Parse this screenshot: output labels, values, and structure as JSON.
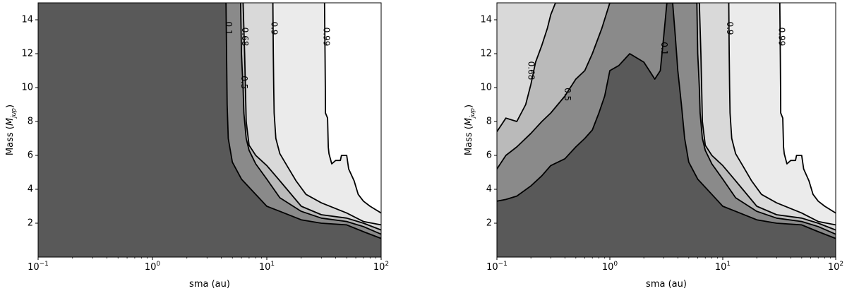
{
  "chart_data": [
    {
      "type": "contour",
      "xlabel": "sma (au)",
      "ylabel": "Mass (M_Jup)",
      "xscale": "log",
      "xlim": [
        0.1,
        100
      ],
      "ylim": [
        0,
        15
      ],
      "x_ticks": [
        {
          "value": 0.1,
          "base": "10",
          "exp": "−1"
        },
        {
          "value": 1,
          "base": "10",
          "exp": "0"
        },
        {
          "value": 10,
          "base": "10",
          "exp": "1"
        },
        {
          "value": 100,
          "base": "10",
          "exp": "2"
        }
      ],
      "y_ticks": [
        2,
        4,
        6,
        8,
        10,
        12,
        14
      ],
      "fill_colors": [
        "#595959",
        "#8a8a8a",
        "#bababa",
        "#d9d9d9",
        "#ebebeb",
        "#ffffff"
      ],
      "contours": [
        {
          "level": "0.1",
          "label_at": [
            4.6,
            13.5
          ],
          "points": [
            [
              4.4,
              15
            ],
            [
              4.45,
              12
            ],
            [
              4.5,
              9
            ],
            [
              4.6,
              7
            ],
            [
              5,
              5.6
            ],
            [
              6,
              4.6
            ],
            [
              8,
              3.7
            ],
            [
              10,
              3
            ],
            [
              13,
              2.7
            ],
            [
              20,
              2.2
            ],
            [
              30,
              2.0
            ],
            [
              50,
              1.9
            ],
            [
              70,
              1.5
            ],
            [
              100,
              1.1
            ]
          ]
        },
        {
          "level": "0.5",
          "label_at": [
            6.3,
            10.3
          ],
          "points": [
            [
              5.9,
              15
            ],
            [
              6.0,
              12
            ],
            [
              6.1,
              11
            ],
            [
              6.2,
              10
            ],
            [
              6.3,
              8.5
            ],
            [
              6.6,
              7
            ],
            [
              7,
              6.3
            ],
            [
              8,
              5.5
            ],
            [
              10,
              4.6
            ],
            [
              13,
              3.5
            ],
            [
              20,
              2.7
            ],
            [
              30,
              2.3
            ],
            [
              50,
              2.1
            ],
            [
              70,
              1.8
            ],
            [
              100,
              1.35
            ]
          ]
        },
        {
          "level": "0.68",
          "label_at": [
            6.4,
            13.0
          ],
          "points": [
            [
              6.2,
              15
            ],
            [
              6.3,
              13.5
            ],
            [
              6.4,
              12
            ],
            [
              6.5,
              10
            ],
            [
              6.6,
              8
            ],
            [
              7,
              6.6
            ],
            [
              8,
              6
            ],
            [
              10,
              5.4
            ],
            [
              13,
              4.5
            ],
            [
              20,
              3
            ],
            [
              30,
              2.5
            ],
            [
              50,
              2.3
            ],
            [
              70,
              2.0
            ],
            [
              100,
              1.6
            ]
          ]
        },
        {
          "level": "0.9",
          "label_at": [
            11.5,
            13.5
          ],
          "points": [
            [
              11.3,
              15
            ],
            [
              11.4,
              12
            ],
            [
              11.5,
              10
            ],
            [
              11.6,
              8.5
            ],
            [
              12,
              7
            ],
            [
              13,
              6.1
            ],
            [
              15,
              5.4
            ],
            [
              18,
              4.5
            ],
            [
              22,
              3.7
            ],
            [
              30,
              3.2
            ],
            [
              50,
              2.6
            ],
            [
              70,
              2.1
            ],
            [
              100,
              1.9
            ]
          ]
        },
        {
          "level": "0.99",
          "label_at": [
            33,
            13.0
          ],
          "points": [
            [
              32,
              15
            ],
            [
              32.3,
              12
            ],
            [
              32.5,
              10
            ],
            [
              32.6,
              8.5
            ],
            [
              34,
              8.2
            ],
            [
              34.5,
              6.5
            ],
            [
              35,
              6.1
            ],
            [
              37,
              5.5
            ],
            [
              40,
              5.7
            ],
            [
              44,
              5.7
            ],
            [
              45,
              6.0
            ],
            [
              50,
              6.0
            ],
            [
              52,
              5.2
            ],
            [
              58,
              4.5
            ],
            [
              63,
              3.7
            ],
            [
              70,
              3.3
            ],
            [
              80,
              3.0
            ],
            [
              100,
              2.6
            ]
          ]
        }
      ]
    },
    {
      "type": "contour",
      "xlabel": "sma (au)",
      "ylabel": "Mass (M_Jup)",
      "xscale": "log",
      "xlim": [
        0.1,
        100
      ],
      "ylim": [
        0,
        15
      ],
      "x_ticks": [
        {
          "value": 0.1,
          "base": "10",
          "exp": "−1"
        },
        {
          "value": 1,
          "base": "10",
          "exp": "0"
        },
        {
          "value": 10,
          "base": "10",
          "exp": "1"
        },
        {
          "value": 100,
          "base": "10",
          "exp": "2"
        }
      ],
      "y_ticks": [
        2,
        4,
        6,
        8,
        10,
        12,
        14
      ],
      "fill_colors": [
        "#595959",
        "#8a8a8a",
        "#bababa",
        "#d9d9d9",
        "#ebebeb",
        "#ffffff"
      ],
      "contours": [
        {
          "level": "0.1",
          "label_at": [
            3.0,
            12.3
          ],
          "points": [
            [
              0.1,
              3.3
            ],
            [
              0.12,
              3.4
            ],
            [
              0.15,
              3.6
            ],
            [
              0.2,
              4.2
            ],
            [
              0.25,
              4.8
            ],
            [
              0.3,
              5.4
            ],
            [
              0.4,
              5.8
            ],
            [
              0.5,
              6.5
            ],
            [
              0.6,
              7.0
            ],
            [
              0.7,
              7.5
            ],
            [
              0.8,
              8.5
            ],
            [
              0.9,
              9.5
            ],
            [
              1.0,
              11.0
            ],
            [
              1.2,
              11.3
            ],
            [
              1.5,
              12.0
            ],
            [
              2.0,
              11.5
            ],
            [
              2.5,
              10.5
            ],
            [
              2.8,
              11.0
            ],
            [
              3.0,
              13.0
            ],
            [
              3.2,
              15
            ],
            [
              3.6,
              15
            ],
            [
              3.8,
              13.0
            ],
            [
              4.0,
              11.0
            ],
            [
              4.3,
              9.0
            ],
            [
              4.6,
              7.0
            ],
            [
              5,
              5.6
            ],
            [
              6,
              4.6
            ],
            [
              8,
              3.7
            ],
            [
              10,
              3
            ],
            [
              13,
              2.7
            ],
            [
              20,
              2.2
            ],
            [
              30,
              2.0
            ],
            [
              50,
              1.9
            ],
            [
              70,
              1.5
            ],
            [
              100,
              1.1
            ]
          ]
        },
        {
          "level": "0.5",
          "label_at": [
            0.42,
            9.6
          ],
          "points": [
            [
              0.1,
              5.2
            ],
            [
              0.12,
              6.0
            ],
            [
              0.15,
              6.5
            ],
            [
              0.2,
              7.3
            ],
            [
              0.25,
              8.0
            ],
            [
              0.3,
              8.5
            ],
            [
              0.4,
              9.5
            ],
            [
              0.5,
              10.5
            ],
            [
              0.6,
              11.0
            ],
            [
              0.7,
              12.0
            ],
            [
              0.85,
              13.5
            ],
            [
              1.0,
              15
            ],
            [
              5.9,
              15
            ],
            [
              6.0,
              12
            ],
            [
              6.1,
              11
            ],
            [
              6.2,
              10
            ],
            [
              6.3,
              8.5
            ],
            [
              6.6,
              7
            ],
            [
              7,
              6.3
            ],
            [
              8,
              5.5
            ],
            [
              10,
              4.6
            ],
            [
              13,
              3.5
            ],
            [
              20,
              2.7
            ],
            [
              30,
              2.3
            ],
            [
              50,
              2.1
            ],
            [
              70,
              1.8
            ],
            [
              100,
              1.35
            ]
          ]
        },
        {
          "level": "0.68",
          "label_at": [
            0.2,
            11.0
          ],
          "points": [
            [
              0.1,
              7.4
            ],
            [
              0.12,
              8.2
            ],
            [
              0.15,
              8.0
            ],
            [
              0.18,
              9.0
            ],
            [
              0.2,
              10.2
            ],
            [
              0.22,
              11.5
            ],
            [
              0.25,
              12.5
            ],
            [
              0.28,
              13.5
            ],
            [
              0.3,
              14.3
            ],
            [
              0.33,
              15
            ],
            [
              6.2,
              15
            ],
            [
              6.3,
              13.5
            ],
            [
              6.4,
              12
            ],
            [
              6.5,
              10
            ],
            [
              6.6,
              8
            ],
            [
              7,
              6.6
            ],
            [
              8,
              6
            ],
            [
              10,
              5.4
            ],
            [
              13,
              4.5
            ],
            [
              20,
              3
            ],
            [
              30,
              2.5
            ],
            [
              50,
              2.3
            ],
            [
              70,
              2.0
            ],
            [
              100,
              1.6
            ]
          ]
        },
        {
          "level": "0.9",
          "label_at": [
            11.5,
            13.5
          ],
          "points": [
            [
              11.3,
              15
            ],
            [
              11.4,
              12
            ],
            [
              11.5,
              10
            ],
            [
              11.6,
              8.5
            ],
            [
              12,
              7
            ],
            [
              13,
              6.1
            ],
            [
              15,
              5.4
            ],
            [
              18,
              4.5
            ],
            [
              22,
              3.7
            ],
            [
              30,
              3.2
            ],
            [
              50,
              2.6
            ],
            [
              70,
              2.1
            ],
            [
              100,
              1.9
            ]
          ]
        },
        {
          "level": "0.99",
          "label_at": [
            33,
            13.0
          ],
          "points": [
            [
              32,
              15
            ],
            [
              32.3,
              12
            ],
            [
              32.5,
              10
            ],
            [
              32.6,
              8.5
            ],
            [
              34,
              8.2
            ],
            [
              34.5,
              6.5
            ],
            [
              35,
              6.1
            ],
            [
              37,
              5.5
            ],
            [
              40,
              5.7
            ],
            [
              44,
              5.7
            ],
            [
              45,
              6.0
            ],
            [
              50,
              6.0
            ],
            [
              52,
              5.2
            ],
            [
              58,
              4.5
            ],
            [
              63,
              3.7
            ],
            [
              70,
              3.3
            ],
            [
              80,
              3.0
            ],
            [
              100,
              2.6
            ]
          ]
        }
      ]
    }
  ]
}
